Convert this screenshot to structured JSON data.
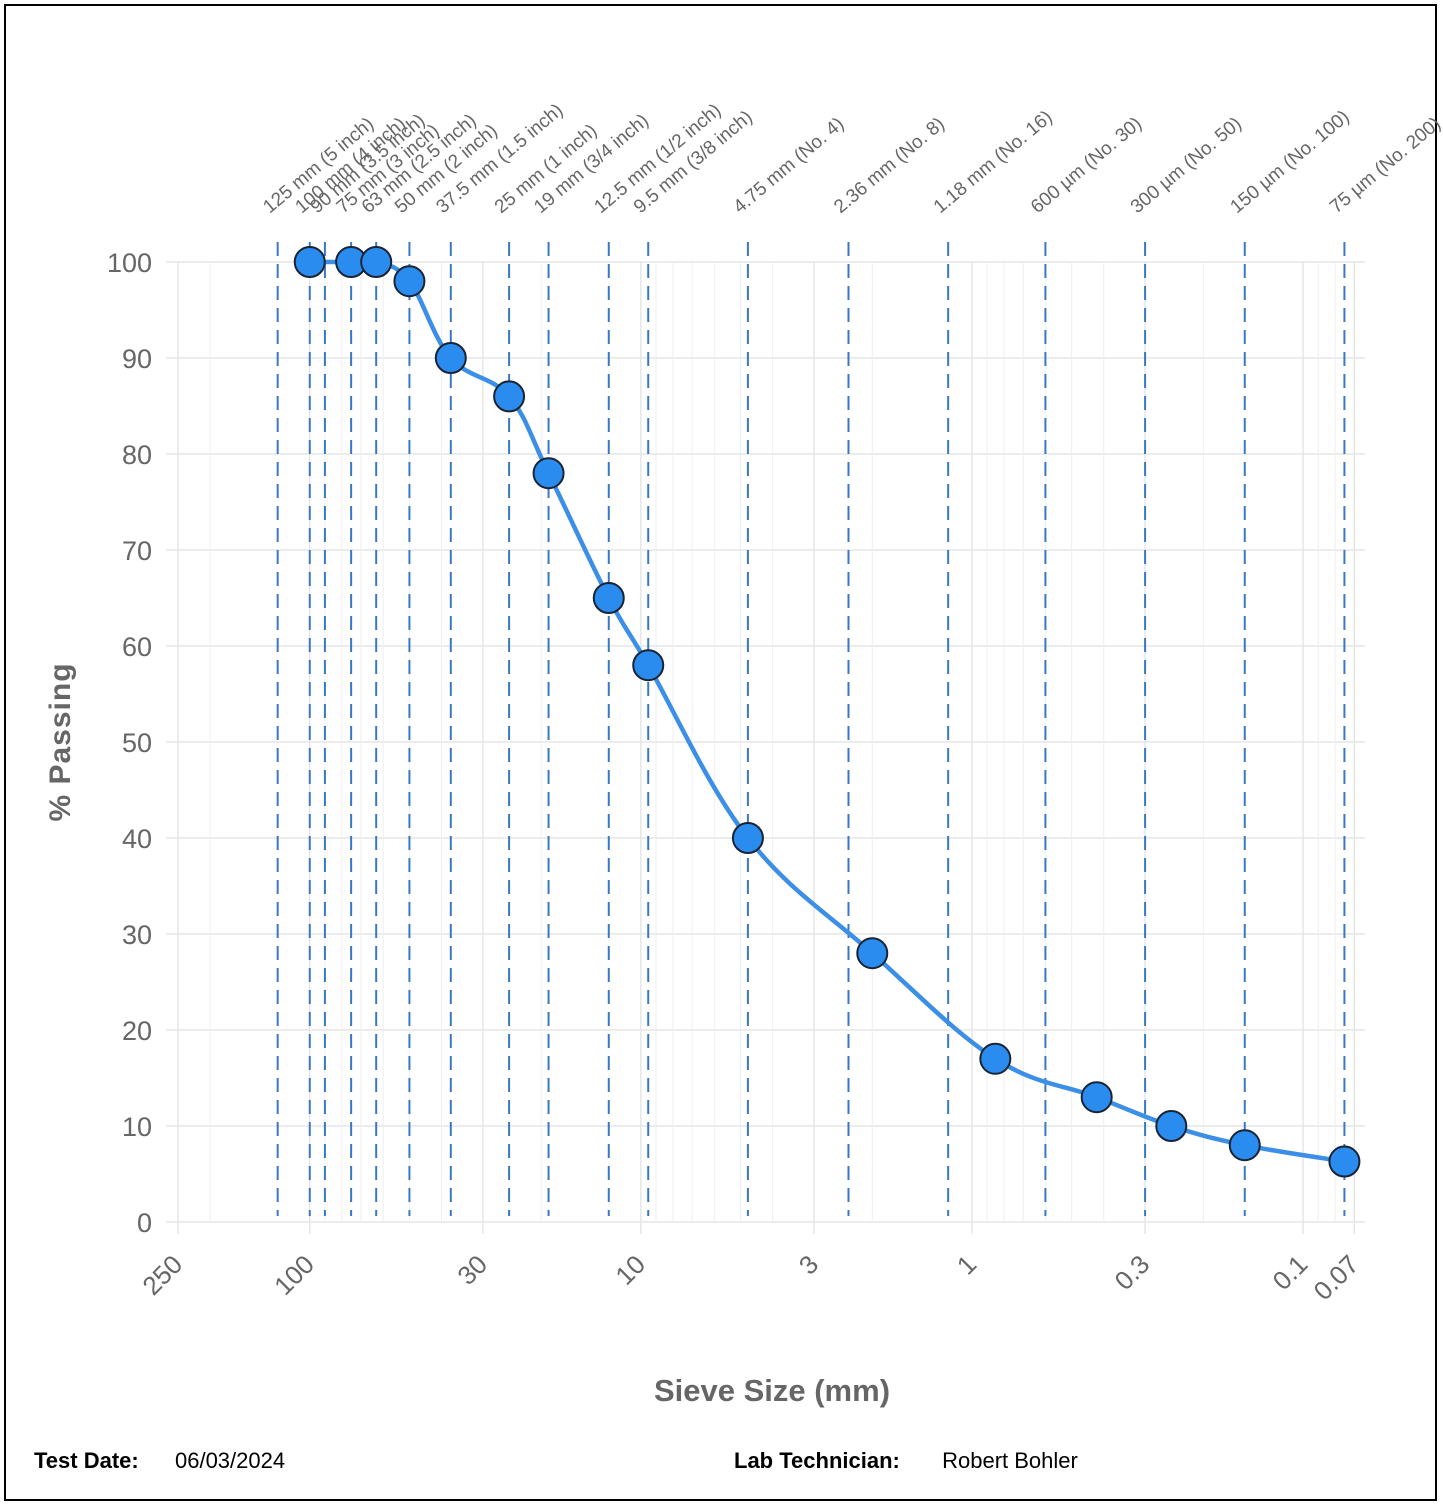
{
  "chart_data": {
    "type": "line",
    "xlabel": "Sieve Size (mm)",
    "ylabel": "% Passing",
    "x_scale": "log",
    "x_reversed": true,
    "xlim": [
      250,
      0.065
    ],
    "ylim": [
      0,
      100
    ],
    "y_ticks": [
      0,
      10,
      20,
      30,
      40,
      50,
      60,
      70,
      80,
      90,
      100
    ],
    "x_ticks": [
      {
        "value": 250,
        "label": "250"
      },
      {
        "value": 100,
        "label": "100"
      },
      {
        "value": 30,
        "label": "30"
      },
      {
        "value": 10,
        "label": "10"
      },
      {
        "value": 3,
        "label": "3"
      },
      {
        "value": 1,
        "label": "1"
      },
      {
        "value": 0.3,
        "label": "0.3"
      },
      {
        "value": 0.1,
        "label": "0.1"
      },
      {
        "value": 0.07,
        "label": "0.07"
      }
    ],
    "x_minor_grid": [
      200,
      90,
      80,
      70,
      60,
      50,
      40,
      20,
      9,
      8,
      7,
      6,
      5,
      4,
      2,
      0.9,
      0.8,
      0.7,
      0.6,
      0.5,
      0.4,
      0.2,
      0.09,
      0.08
    ],
    "sieves": [
      {
        "size": 125,
        "label": "125 mm (5 inch)"
      },
      {
        "size": 100,
        "label": "100 mm (4 inch)"
      },
      {
        "size": 90,
        "label": "90 mm (3.5 inch)"
      },
      {
        "size": 75,
        "label": "75 mm (3 inch)"
      },
      {
        "size": 63,
        "label": "63 mm (2.5 inch)"
      },
      {
        "size": 50,
        "label": "50 mm (2 inch)"
      },
      {
        "size": 37.5,
        "label": "37.5 mm (1.5 inch)"
      },
      {
        "size": 25,
        "label": "25 mm (1 inch)"
      },
      {
        "size": 19,
        "label": "19 mm (3/4 inch)"
      },
      {
        "size": 12.5,
        "label": "12.5 mm (1/2 inch)"
      },
      {
        "size": 9.5,
        "label": "9.5 mm (3/8 inch)"
      },
      {
        "size": 4.75,
        "label": "4.75 mm (No. 4)"
      },
      {
        "size": 2.36,
        "label": "2.36 mm (No. 8)"
      },
      {
        "size": 1.18,
        "label": "1.18 mm (No. 16)"
      },
      {
        "size": 0.6,
        "label": "600 µm (No. 30)"
      },
      {
        "size": 0.3,
        "label": "300 µm (No. 50)"
      },
      {
        "size": 0.15,
        "label": "150 µm (No. 100)"
      },
      {
        "size": 0.075,
        "label": "75 µm (No. 200)"
      }
    ],
    "series": [
      {
        "x": [
          100,
          75,
          63,
          50,
          37.5,
          25,
          19,
          12.5,
          9.5,
          4.75,
          2.0,
          0.85,
          0.42,
          0.25,
          0.15,
          0.075
        ],
        "y": [
          100,
          100,
          100,
          98,
          90,
          86,
          78,
          65,
          58,
          40,
          28,
          17,
          13,
          10,
          8,
          6.3
        ]
      }
    ],
    "colors": {
      "line": "#3b8fe6",
      "marker_fill": "#2b8cf0",
      "marker_stroke": "#1a2433",
      "sieve_line": "#3a78c4",
      "grid": "#e6e6e6",
      "axis_text": "#666666"
    }
  },
  "footer": {
    "test_date_label": "Test Date:",
    "test_date": "06/03/2024",
    "technician_label": "Lab Technician:",
    "technician": "Robert Bohler"
  }
}
